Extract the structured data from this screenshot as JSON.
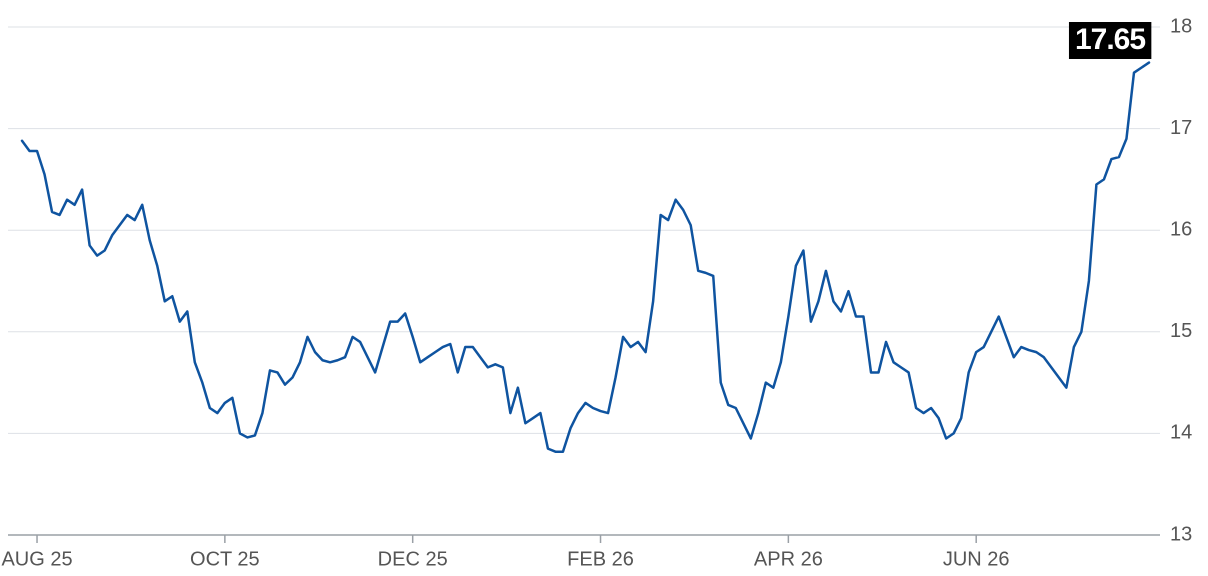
{
  "chart_data": {
    "type": "line",
    "categories": [
      null,
      null,
      "AUG 25",
      null,
      null,
      null,
      null,
      null,
      null,
      null,
      null,
      null,
      null,
      null,
      null,
      null,
      null,
      null,
      null,
      null,
      null,
      null,
      null,
      null,
      null,
      null,
      null,
      "OCT 25",
      null,
      null,
      null,
      null,
      null,
      null,
      null,
      null,
      null,
      null,
      null,
      null,
      null,
      null,
      null,
      null,
      null,
      null,
      null,
      null,
      null,
      null,
      null,
      null,
      "DEC 25",
      null,
      null,
      null,
      null,
      null,
      null,
      null,
      null,
      null,
      null,
      null,
      null,
      null,
      null,
      null,
      null,
      null,
      null,
      null,
      null,
      null,
      null,
      null,
      null,
      "FEB 26",
      null,
      null,
      null,
      null,
      null,
      null,
      null,
      null,
      null,
      null,
      null,
      null,
      null,
      null,
      null,
      null,
      null,
      null,
      null,
      null,
      null,
      null,
      null,
      null,
      "APR 26",
      null,
      null,
      null,
      null,
      null,
      null,
      null,
      null,
      null,
      null,
      null,
      null,
      null,
      null,
      null,
      null,
      null,
      null,
      null,
      null,
      null,
      null,
      null,
      null,
      "JUN 26",
      null,
      null,
      null,
      null,
      null,
      null,
      null,
      null,
      null,
      null,
      null,
      null,
      null,
      null,
      null,
      null,
      null,
      null,
      null,
      null,
      null,
      null,
      null
    ],
    "series": [
      {
        "color": "#0f54a0",
        "values": [
          16.88,
          16.78,
          16.78,
          16.55,
          16.18,
          16.15,
          16.3,
          16.25,
          16.4,
          15.85,
          15.75,
          15.8,
          15.95,
          16.05,
          16.15,
          16.1,
          16.25,
          15.9,
          15.65,
          15.3,
          15.35,
          15.1,
          15.2,
          14.7,
          14.5,
          14.25,
          14.2,
          14.3,
          14.35,
          14.0,
          13.96,
          13.98,
          14.2,
          14.62,
          14.6,
          14.48,
          14.55,
          14.7,
          14.95,
          14.8,
          14.72,
          14.7,
          14.72,
          14.75,
          14.95,
          14.9,
          14.75,
          14.6,
          14.85,
          15.1,
          15.1,
          15.18,
          14.95,
          14.7,
          14.75,
          14.8,
          14.85,
          14.88,
          14.6,
          14.85,
          14.85,
          14.75,
          14.65,
          14.68,
          14.65,
          14.2,
          14.45,
          14.1,
          14.15,
          14.2,
          13.85,
          13.82,
          13.82,
          14.05,
          14.2,
          14.3,
          14.25,
          14.22,
          14.2,
          14.55,
          14.95,
          14.85,
          14.9,
          14.8,
          15.3,
          16.15,
          16.1,
          16.3,
          16.2,
          16.05,
          15.6,
          15.58,
          15.55,
          14.5,
          14.28,
          14.25,
          14.1,
          13.95,
          14.2,
          14.5,
          14.45,
          14.7,
          15.15,
          15.65,
          15.8,
          15.1,
          15.3,
          15.6,
          15.3,
          15.2,
          15.4,
          15.15,
          15.15,
          14.6,
          14.6,
          14.9,
          14.7,
          14.65,
          14.6,
          14.25,
          14.2,
          14.25,
          14.15,
          13.95,
          14.0,
          14.15,
          14.6,
          14.8,
          14.85,
          15.0,
          15.15,
          14.95,
          14.75,
          14.85,
          14.82,
          14.8,
          14.75,
          14.65,
          14.55,
          14.45,
          14.85,
          15.0,
          15.5,
          16.45,
          16.5,
          16.7,
          16.72,
          16.9,
          17.55,
          17.6,
          17.65
        ]
      }
    ],
    "ylim": [
      13,
      18
    ],
    "yticks": [
      13,
      14,
      15,
      16,
      17,
      18
    ],
    "grid": true
  }
}
